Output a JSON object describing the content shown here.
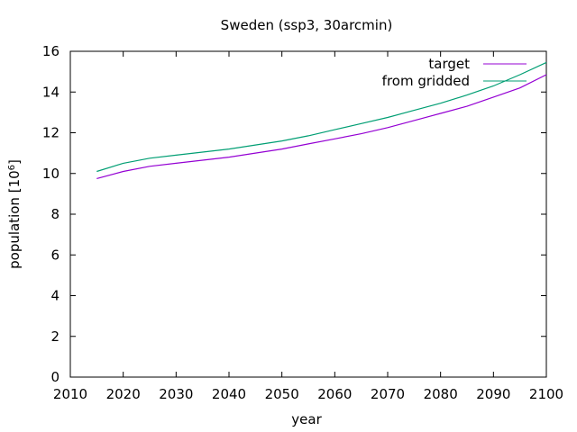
{
  "chart_data": {
    "type": "line",
    "title": "Sweden (ssp3, 30arcmin)",
    "xlabel": "year",
    "ylabel_base": "population [10",
    "ylabel_exp": "6",
    "ylabel_close": "]",
    "xlim": [
      2010,
      2100
    ],
    "ylim": [
      0,
      16
    ],
    "xticks": [
      2010,
      2020,
      2030,
      2040,
      2050,
      2060,
      2070,
      2080,
      2090,
      2100
    ],
    "yticks": [
      0,
      2,
      4,
      6,
      8,
      10,
      12,
      14,
      16
    ],
    "grid": false,
    "legend_position": "top-right",
    "x": [
      2015,
      2020,
      2025,
      2030,
      2035,
      2040,
      2045,
      2050,
      2055,
      2060,
      2065,
      2070,
      2075,
      2080,
      2085,
      2090,
      2095,
      2100
    ],
    "series": [
      {
        "name": "target",
        "color": "#9400d3",
        "values": [
          9.75,
          10.1,
          10.35,
          10.5,
          10.65,
          10.8,
          11.0,
          11.2,
          11.45,
          11.7,
          11.95,
          12.25,
          12.6,
          12.95,
          13.3,
          13.75,
          14.2,
          14.85
        ]
      },
      {
        "name": "from gridded",
        "color": "#009e73",
        "values": [
          10.1,
          10.5,
          10.75,
          10.9,
          11.05,
          11.2,
          11.4,
          11.6,
          11.85,
          12.15,
          12.45,
          12.75,
          13.1,
          13.45,
          13.85,
          14.3,
          14.85,
          15.45
        ]
      }
    ]
  }
}
